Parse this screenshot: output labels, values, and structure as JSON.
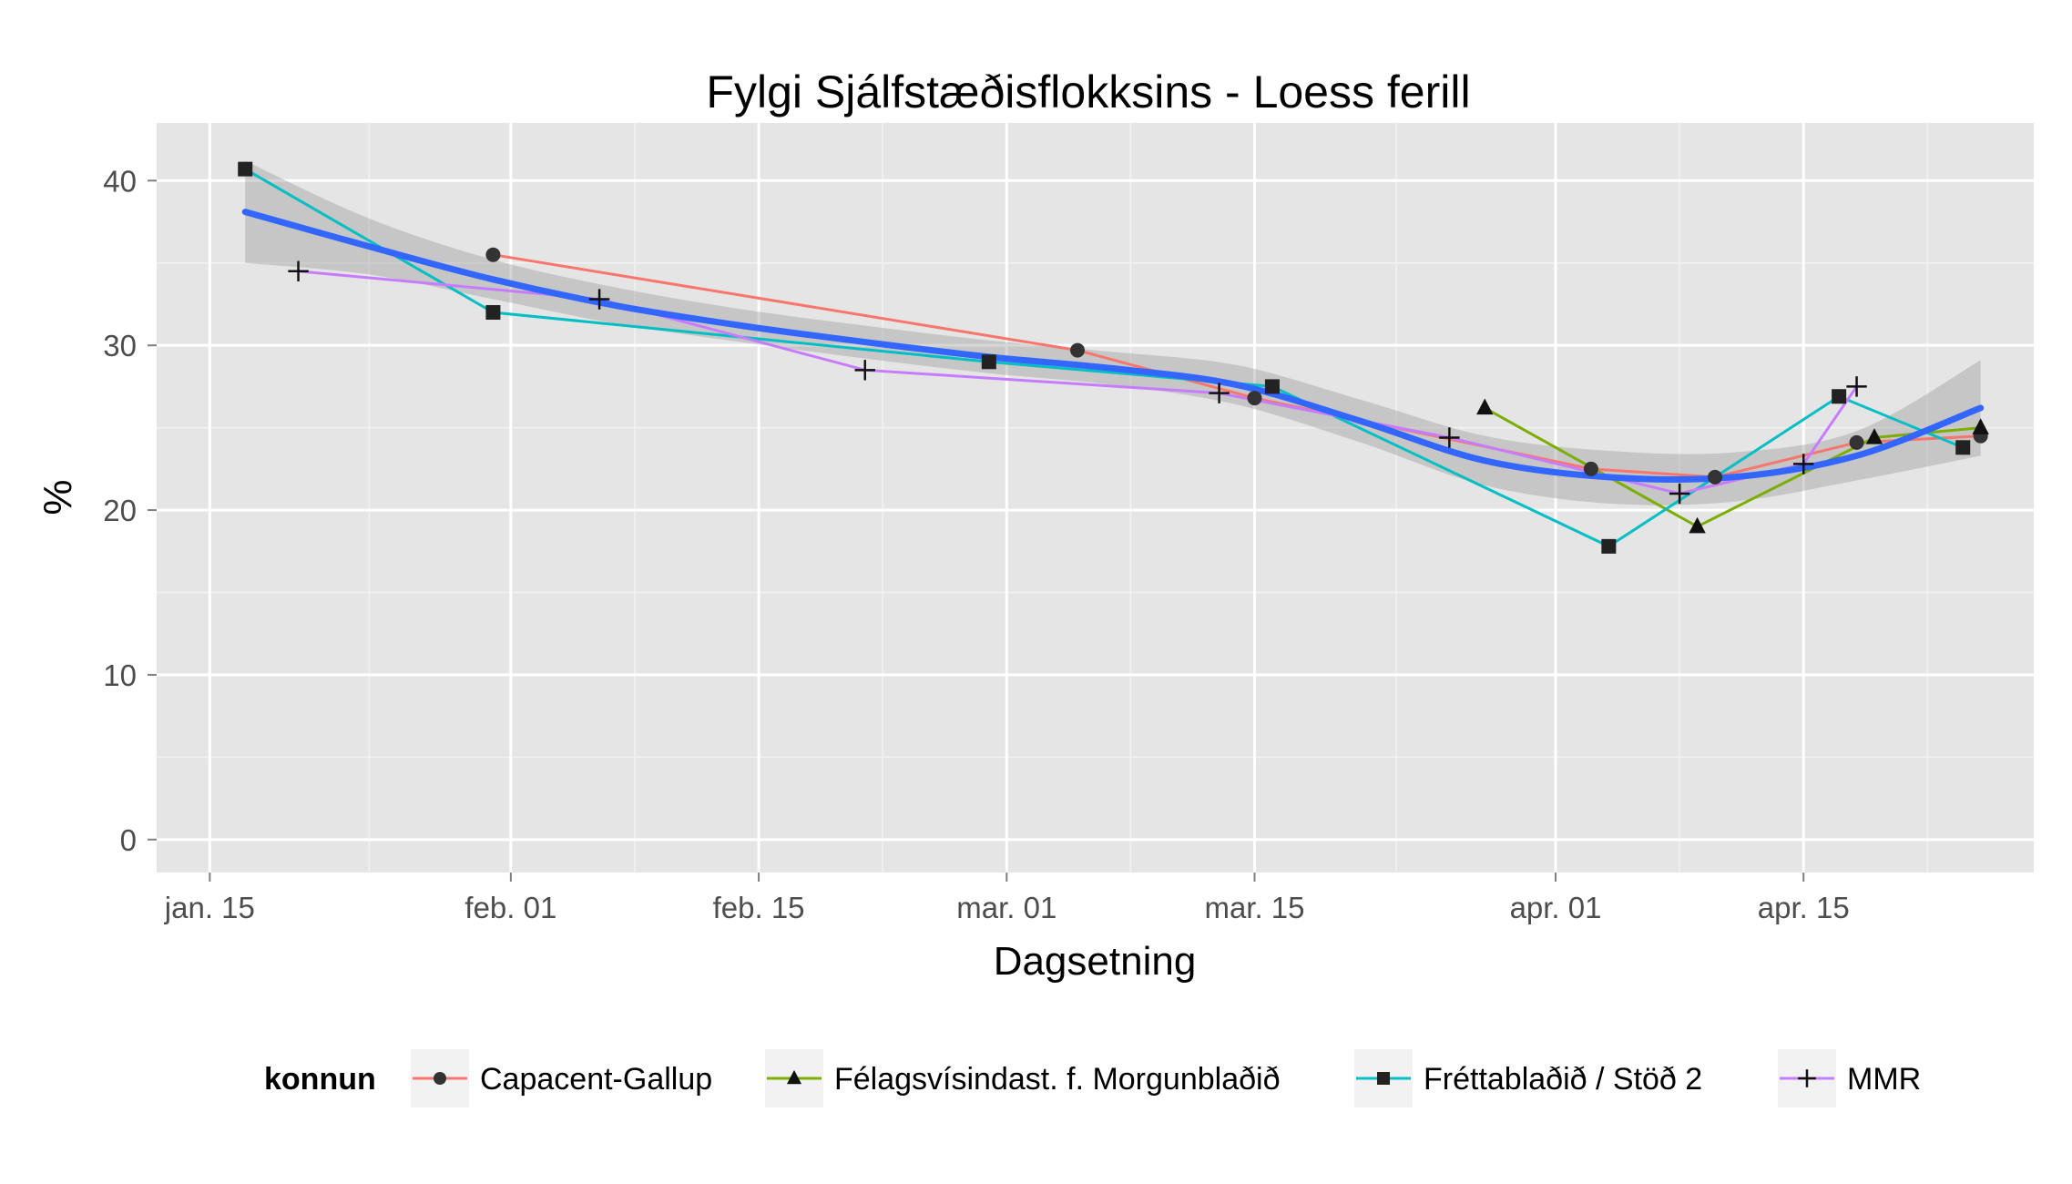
{
  "chart_data": {
    "type": "line",
    "title": "Fylgi Sjálfstæðisflokksins - Loess ferill",
    "xlabel": "Dagsetning",
    "ylabel": "%",
    "x_is_date": true,
    "xlim": [
      "2013-01-12",
      "2013-04-28"
    ],
    "ylim": [
      -2,
      43.5
    ],
    "x_ticks": [
      {
        "date": "2013-01-15",
        "label": "jan. 15"
      },
      {
        "date": "2013-02-01",
        "label": "feb. 01"
      },
      {
        "date": "2013-02-15",
        "label": "feb. 15"
      },
      {
        "date": "2013-03-01",
        "label": "mar. 01"
      },
      {
        "date": "2013-03-15",
        "label": "mar. 15"
      },
      {
        "date": "2013-04-01",
        "label": "apr. 01"
      },
      {
        "date": "2013-04-15",
        "label": "apr. 15"
      }
    ],
    "x_minor_ticks": [
      "2013-01-24",
      "2013-02-08",
      "2013-02-22",
      "2013-03-08",
      "2013-03-23",
      "2013-04-08",
      "2013-04-22"
    ],
    "y_ticks": [
      0,
      10,
      20,
      30,
      40
    ],
    "y_minor_ticks": [
      5,
      15,
      25,
      35
    ],
    "grid": true,
    "legend": {
      "title": "konnun",
      "position": "bottom"
    },
    "series": [
      {
        "name": "Capacent-Gallup",
        "color": "#f8766d",
        "marker": "circle",
        "points": [
          {
            "x": "2013-01-31",
            "y": 35.5
          },
          {
            "x": "2013-03-05",
            "y": 29.7
          },
          {
            "x": "2013-03-15",
            "y": 26.8
          },
          {
            "x": "2013-04-03",
            "y": 22.5
          },
          {
            "x": "2013-04-10",
            "y": 22.0
          },
          {
            "x": "2013-04-18",
            "y": 24.1
          },
          {
            "x": "2013-04-25",
            "y": 24.5
          }
        ]
      },
      {
        "name": "Félagsvísindast. f. Morgunblaðið",
        "color": "#7cae00",
        "marker": "triangle",
        "points": [
          {
            "x": "2013-03-28",
            "y": 26.2
          },
          {
            "x": "2013-04-09",
            "y": 19.0
          },
          {
            "x": "2013-04-19",
            "y": 24.4
          },
          {
            "x": "2013-04-25",
            "y": 25.0
          }
        ]
      },
      {
        "name": "Fréttablaðið / Stöð 2",
        "color": "#00bfc4",
        "marker": "square",
        "points": [
          {
            "x": "2013-01-17",
            "y": 40.7
          },
          {
            "x": "2013-01-31",
            "y": 32.0
          },
          {
            "x": "2013-02-28",
            "y": 29.0
          },
          {
            "x": "2013-03-16",
            "y": 27.5
          },
          {
            "x": "2013-04-04",
            "y": 17.8
          },
          {
            "x": "2013-04-17",
            "y": 26.9
          },
          {
            "x": "2013-04-24",
            "y": 23.8
          }
        ]
      },
      {
        "name": "MMR",
        "color": "#c77cff",
        "marker": "plus",
        "points": [
          {
            "x": "2013-01-20",
            "y": 34.5
          },
          {
            "x": "2013-02-06",
            "y": 32.8
          },
          {
            "x": "2013-02-21",
            "y": 28.5
          },
          {
            "x": "2013-03-13",
            "y": 27.1
          },
          {
            "x": "2013-03-26",
            "y": 24.4
          },
          {
            "x": "2013-04-08",
            "y": 21.0
          },
          {
            "x": "2013-04-15",
            "y": 22.8
          },
          {
            "x": "2013-04-18",
            "y": 27.5
          }
        ]
      }
    ],
    "loess": {
      "color": "#3366ff",
      "band_color": "#999999",
      "points": [
        {
          "x": "2013-01-17",
          "y": 38.1,
          "lo": 35.0,
          "hi": 41.2
        },
        {
          "x": "2013-01-24",
          "y": 36.0,
          "lo": 34.3,
          "hi": 37.7
        },
        {
          "x": "2013-01-31",
          "y": 34.0,
          "lo": 32.8,
          "hi": 35.2
        },
        {
          "x": "2013-02-07",
          "y": 32.4,
          "lo": 31.3,
          "hi": 33.5
        },
        {
          "x": "2013-02-14",
          "y": 31.2,
          "lo": 30.2,
          "hi": 32.2
        },
        {
          "x": "2013-02-21",
          "y": 30.2,
          "lo": 29.2,
          "hi": 31.2
        },
        {
          "x": "2013-02-28",
          "y": 29.3,
          "lo": 28.3,
          "hi": 30.3
        },
        {
          "x": "2013-03-07",
          "y": 28.6,
          "lo": 27.6,
          "hi": 29.6
        },
        {
          "x": "2013-03-14",
          "y": 27.6,
          "lo": 26.4,
          "hi": 28.8
        },
        {
          "x": "2013-03-21",
          "y": 25.4,
          "lo": 24.1,
          "hi": 26.7
        },
        {
          "x": "2013-03-28",
          "y": 23.0,
          "lo": 21.5,
          "hi": 24.5
        },
        {
          "x": "2013-04-04",
          "y": 22.0,
          "lo": 20.4,
          "hi": 23.6
        },
        {
          "x": "2013-04-11",
          "y": 22.0,
          "lo": 20.5,
          "hi": 23.5
        },
        {
          "x": "2013-04-18",
          "y": 23.3,
          "lo": 21.8,
          "hi": 24.8
        },
        {
          "x": "2013-04-25",
          "y": 26.2,
          "lo": 23.3,
          "hi": 29.1
        }
      ]
    }
  }
}
